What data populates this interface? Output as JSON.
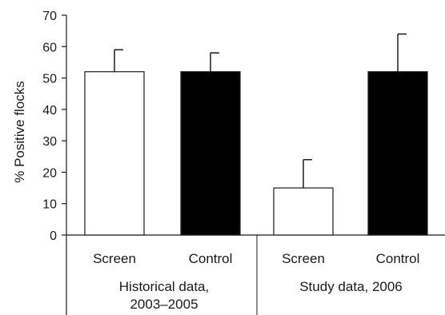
{
  "chart_data": {
    "type": "bar",
    "title": "",
    "xlabel": "",
    "ylabel": "% Positive flocks",
    "ylim": [
      0,
      70
    ],
    "yticks": [
      0,
      10,
      20,
      30,
      40,
      50,
      60,
      70
    ],
    "grid": false,
    "legend": "none",
    "groups": [
      {
        "label_lines": [
          "Historical data,",
          "2003–2005"
        ]
      },
      {
        "label_lines": [
          "Study data, 2006"
        ]
      }
    ],
    "bars": [
      {
        "group": 0,
        "category": "Screen",
        "value": 52,
        "error": 7,
        "fill": "#ffffff"
      },
      {
        "group": 0,
        "category": "Control",
        "value": 52,
        "error": 6,
        "fill": "#000000"
      },
      {
        "group": 1,
        "category": "Screen",
        "value": 15,
        "error": 9,
        "fill": "#ffffff"
      },
      {
        "group": 1,
        "category": "Control",
        "value": 52,
        "error": 12,
        "fill": "#000000"
      }
    ],
    "colors": {
      "axis": "#1a1a1a",
      "screen": "#ffffff",
      "control": "#000000",
      "outline": "#1a1a1a"
    }
  }
}
